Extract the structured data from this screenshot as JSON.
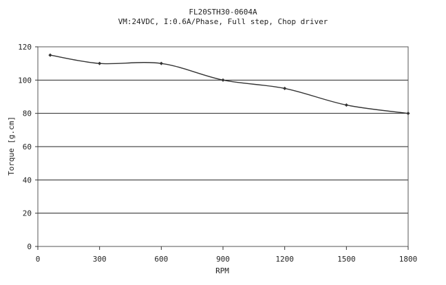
{
  "chart_data": {
    "type": "line",
    "title": "FL20STH30-0604A",
    "subtitle": "VM:24VDC, I:0.6A/Phase, Full step, Chop driver",
    "xlabel": "RPM",
    "ylabel": "Torque [g.cm]",
    "xlim": [
      0,
      1800
    ],
    "ylim": [
      0,
      120
    ],
    "xticks": [
      0,
      300,
      600,
      900,
      1200,
      1500,
      1800
    ],
    "yticks": [
      0,
      20,
      40,
      60,
      80,
      100,
      120
    ],
    "grid": "horizontal",
    "legend": "none",
    "series": [
      {
        "color": "#333333",
        "x": [
          60,
          300,
          600,
          900,
          1200,
          1500,
          1800
        ],
        "y": [
          115,
          110,
          110,
          100,
          95,
          85,
          80
        ]
      }
    ]
  }
}
